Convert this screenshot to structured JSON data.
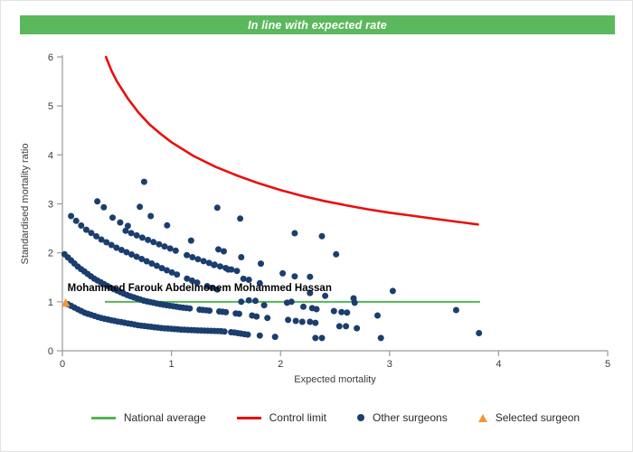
{
  "header": {
    "title": "In line with expected rate",
    "bg_color": "#5cb85c",
    "text_color": "#ffffff"
  },
  "chart_data": {
    "type": "scatter",
    "title": "",
    "xlabel": "Expected mortality",
    "ylabel": "Standardised mortality ratio",
    "xlim": [
      0,
      5
    ],
    "ylim": [
      0,
      6
    ],
    "x_ticks": [
      0,
      1,
      2,
      3,
      4,
      5
    ],
    "y_ticks": [
      0,
      1,
      2,
      3,
      4,
      5,
      6
    ],
    "grid": "off",
    "axis_color": "#9a9a9a",
    "tick_label_color": "#3c3c3c",
    "national_average": {
      "label": "National average",
      "y": 1.0,
      "x_start": 0.39,
      "x_end": 3.83,
      "color": "#55b455"
    },
    "control_limit": {
      "label": "Control limit",
      "color": "#e8100c",
      "points": [
        [
          0.4,
          6.0
        ],
        [
          0.45,
          5.72
        ],
        [
          0.5,
          5.5
        ],
        [
          0.6,
          5.15
        ],
        [
          0.7,
          4.86
        ],
        [
          0.8,
          4.62
        ],
        [
          0.9,
          4.43
        ],
        [
          1.0,
          4.26
        ],
        [
          1.2,
          3.98
        ],
        [
          1.4,
          3.76
        ],
        [
          1.6,
          3.58
        ],
        [
          1.8,
          3.42
        ],
        [
          2.0,
          3.28
        ],
        [
          2.2,
          3.16
        ],
        [
          2.4,
          3.06
        ],
        [
          2.6,
          2.97
        ],
        [
          2.8,
          2.89
        ],
        [
          3.0,
          2.82
        ],
        [
          3.2,
          2.76
        ],
        [
          3.4,
          2.7
        ],
        [
          3.6,
          2.64
        ],
        [
          3.81,
          2.58
        ]
      ]
    },
    "selected_surgeon": {
      "label": "Selected surgeon",
      "name": "Mohammed Farouk Abdelmonem Mohammed Hassan",
      "x": 0.03,
      "y": 0.98,
      "color": "#f79333"
    },
    "other_surgeons": {
      "label": "Other surgeons",
      "color": "#1b3e6f",
      "bands": [
        {
          "anchors": [
            [
              0.05,
              0.95
            ],
            [
              0.2,
              0.78
            ],
            [
              0.35,
              0.67
            ],
            [
              0.5,
              0.6
            ],
            [
              0.7,
              0.52
            ],
            [
              0.9,
              0.465
            ],
            [
              1.1,
              0.43
            ],
            [
              1.3,
              0.41
            ],
            [
              1.45,
              0.4
            ],
            [
              1.58,
              0.37
            ],
            [
              1.7,
              0.33
            ]
          ],
          "count": 55,
          "gaps": [
            [
              1.5,
              1.53
            ]
          ]
        },
        {
          "anchors": [
            [
              0.02,
              1.97
            ],
            [
              0.15,
              1.7
            ],
            [
              0.3,
              1.46
            ],
            [
              0.45,
              1.28
            ],
            [
              0.6,
              1.13
            ],
            [
              0.75,
              1.02
            ],
            [
              0.9,
              0.95
            ],
            [
              1.1,
              0.88
            ],
            [
              1.3,
              0.83
            ],
            [
              1.45,
              0.8
            ],
            [
              1.62,
              0.755
            ]
          ],
          "count": 54,
          "gaps": [
            [
              1.18,
              1.23
            ],
            [
              1.37,
              1.41
            ],
            [
              1.52,
              1.56
            ]
          ]
        },
        {
          "anchors": [
            [
              0.08,
              2.75
            ],
            [
              0.2,
              2.5
            ],
            [
              0.35,
              2.28
            ],
            [
              0.5,
              2.1
            ],
            [
              0.65,
              1.95
            ],
            [
              0.8,
              1.8
            ],
            [
              0.95,
              1.65
            ],
            [
              1.1,
              1.51
            ],
            [
              1.25,
              1.38
            ],
            [
              1.42,
              1.25
            ]
          ],
          "count": 30,
          "gaps": [
            [
              1.07,
              1.12
            ],
            [
              1.28,
              1.32
            ]
          ]
        },
        {
          "anchors": [
            [
              0.58,
              2.45
            ],
            [
              0.72,
              2.32
            ],
            [
              0.88,
              2.18
            ],
            [
              1.02,
              2.06
            ],
            [
              1.18,
              1.92
            ],
            [
              1.32,
              1.81
            ],
            [
              1.48,
              1.7
            ],
            [
              1.6,
              1.63
            ]
          ],
          "count": 21,
          "gaps": [
            [
              1.05,
              1.09
            ],
            [
              1.25,
              1.29
            ]
          ]
        }
      ],
      "points": [
        [
          0.32,
          3.05
        ],
        [
          0.38,
          2.93
        ],
        [
          0.46,
          2.72
        ],
        [
          0.53,
          2.62
        ],
        [
          0.6,
          2.55
        ],
        [
          0.71,
          2.94
        ],
        [
          0.81,
          2.75
        ],
        [
          0.96,
          2.56
        ],
        [
          0.75,
          3.45
        ],
        [
          1.18,
          2.25
        ],
        [
          1.42,
          2.92
        ],
        [
          1.63,
          2.7
        ],
        [
          1.43,
          2.07
        ],
        [
          1.48,
          2.03
        ],
        [
          1.39,
          1.75
        ],
        [
          1.52,
          1.66
        ],
        [
          1.64,
          1.91
        ],
        [
          1.82,
          1.78
        ],
        [
          2.13,
          2.4
        ],
        [
          2.38,
          2.34
        ],
        [
          2.51,
          1.97
        ],
        [
          2.02,
          1.58
        ],
        [
          2.13,
          1.52
        ],
        [
          2.27,
          1.51
        ],
        [
          1.66,
          1.47
        ],
        [
          1.71,
          1.45
        ],
        [
          1.81,
          1.38
        ],
        [
          2.27,
          1.18
        ],
        [
          2.41,
          1.12
        ],
        [
          2.67,
          1.07
        ],
        [
          3.03,
          1.22
        ],
        [
          1.64,
          1.0
        ],
        [
          1.71,
          1.03
        ],
        [
          1.77,
          1.02
        ],
        [
          1.85,
          0.93
        ],
        [
          2.06,
          0.98
        ],
        [
          2.1,
          1.0
        ],
        [
          2.68,
          0.98
        ],
        [
          2.21,
          0.9
        ],
        [
          2.29,
          0.87
        ],
        [
          2.33,
          0.85
        ],
        [
          2.49,
          0.81
        ],
        [
          2.56,
          0.79
        ],
        [
          2.61,
          0.78
        ],
        [
          2.89,
          0.72
        ],
        [
          3.61,
          0.83
        ],
        [
          1.74,
          0.72
        ],
        [
          1.78,
          0.7
        ],
        [
          1.88,
          0.67
        ],
        [
          2.07,
          0.63
        ],
        [
          2.14,
          0.61
        ],
        [
          2.2,
          0.59
        ],
        [
          2.27,
          0.59
        ],
        [
          2.32,
          0.57
        ],
        [
          2.54,
          0.5
        ],
        [
          2.6,
          0.5
        ],
        [
          2.7,
          0.46
        ],
        [
          1.81,
          0.31
        ],
        [
          1.95,
          0.285
        ],
        [
          2.32,
          0.26
        ],
        [
          2.38,
          0.26
        ],
        [
          2.92,
          0.26
        ],
        [
          3.82,
          0.36
        ]
      ]
    }
  },
  "legend": {
    "items": [
      {
        "label": "National average",
        "swatch": "line",
        "color": "#55b455"
      },
      {
        "label": "Control limit",
        "swatch": "line",
        "color": "#e8100c"
      },
      {
        "label": "Other surgeons",
        "swatch": "dot",
        "color": "#1b3e6f"
      },
      {
        "label": "Selected surgeon",
        "swatch": "triangle",
        "color": "#f79333"
      }
    ]
  }
}
